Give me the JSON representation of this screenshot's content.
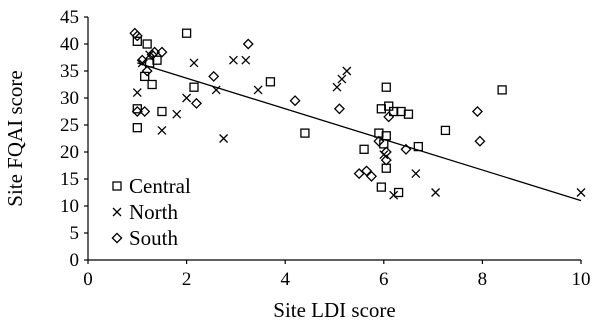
{
  "chart_data": {
    "type": "scatter",
    "xlabel": "Site LDI score",
    "ylabel": "Site FQAI score",
    "xlim": [
      0,
      10
    ],
    "ylim": [
      0,
      45
    ],
    "xticks": [
      0,
      2,
      4,
      6,
      8,
      10
    ],
    "yticks": [
      0,
      5,
      10,
      15,
      20,
      25,
      30,
      35,
      40,
      45
    ],
    "legend_position": "bottom-left",
    "series": [
      {
        "name": "Central",
        "marker": "square",
        "points": [
          [
            1.0,
            40.5
          ],
          [
            1.0,
            28.0
          ],
          [
            1.0,
            24.5
          ],
          [
            1.2,
            40.0
          ],
          [
            1.15,
            34.0
          ],
          [
            1.25,
            36.5
          ],
          [
            1.3,
            32.5
          ],
          [
            1.4,
            37.0
          ],
          [
            1.5,
            27.5
          ],
          [
            2.0,
            42.0
          ],
          [
            2.15,
            32.0
          ],
          [
            3.7,
            33.0
          ],
          [
            4.4,
            23.5
          ],
          [
            5.6,
            20.5
          ],
          [
            5.9,
            23.5
          ],
          [
            6.0,
            21.5
          ],
          [
            5.95,
            28.0
          ],
          [
            6.05,
            32.0
          ],
          [
            6.05,
            23.0
          ],
          [
            6.1,
            28.5
          ],
          [
            6.05,
            17.0
          ],
          [
            6.2,
            27.5
          ],
          [
            6.35,
            27.5
          ],
          [
            6.5,
            27.0
          ],
          [
            5.95,
            13.5
          ],
          [
            6.3,
            12.5
          ],
          [
            6.7,
            21.0
          ],
          [
            7.25,
            24.0
          ],
          [
            8.4,
            31.5
          ]
        ]
      },
      {
        "name": "North",
        "marker": "x",
        "points": [
          [
            1.0,
            31.0
          ],
          [
            1.1,
            36.5
          ],
          [
            1.25,
            38.0
          ],
          [
            1.5,
            24.0
          ],
          [
            1.8,
            27.0
          ],
          [
            2.0,
            30.0
          ],
          [
            2.15,
            36.5
          ],
          [
            2.6,
            31.5
          ],
          [
            2.75,
            22.5
          ],
          [
            2.95,
            37.0
          ],
          [
            3.2,
            37.0
          ],
          [
            3.45,
            31.5
          ],
          [
            5.05,
            32.0
          ],
          [
            5.15,
            33.5
          ],
          [
            5.25,
            35.0
          ],
          [
            6.0,
            19.5
          ],
          [
            6.2,
            12.0
          ],
          [
            6.65,
            16.0
          ],
          [
            7.05,
            12.5
          ],
          [
            10.0,
            12.5
          ]
        ]
      },
      {
        "name": "South",
        "marker": "diamond",
        "points": [
          [
            0.95,
            42.0
          ],
          [
            1.0,
            41.5
          ],
          [
            1.0,
            27.5
          ],
          [
            1.1,
            37.0
          ],
          [
            1.15,
            27.5
          ],
          [
            1.2,
            35.0
          ],
          [
            1.3,
            38.0
          ],
          [
            1.35,
            38.5
          ],
          [
            1.5,
            38.5
          ],
          [
            2.2,
            29.0
          ],
          [
            2.55,
            34.0
          ],
          [
            3.25,
            40.0
          ],
          [
            4.2,
            29.5
          ],
          [
            5.1,
            28.0
          ],
          [
            5.5,
            16.0
          ],
          [
            5.65,
            16.5
          ],
          [
            5.75,
            15.5
          ],
          [
            5.9,
            22.0
          ],
          [
            6.05,
            20.0
          ],
          [
            6.1,
            26.5
          ],
          [
            6.05,
            18.5
          ],
          [
            6.45,
            20.5
          ],
          [
            7.9,
            27.5
          ],
          [
            7.95,
            22.0
          ]
        ]
      }
    ],
    "trendline": {
      "x": [
        1.0,
        10.0
      ],
      "y": [
        36.5,
        11.0
      ]
    }
  }
}
